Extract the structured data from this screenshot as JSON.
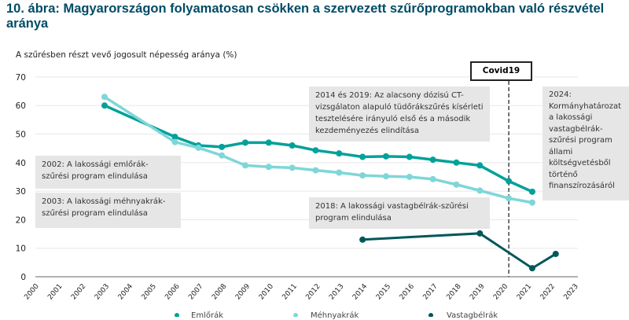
{
  "title": "10. ábra: Magyarországon folyamatosan csökken a szervezett szűrőprogramokban való részvétel aránya",
  "chart_data": {
    "type": "line",
    "title": "10. ábra: Magyarországon folyamatosan csökken a szervezett szűrőprogramokban való részvétel aránya",
    "ylabel": "A szűrésben részt vevő jogosult népesség aránya (%)",
    "xlabel": "",
    "xlim": [
      2000,
      2023
    ],
    "ylim": [
      0,
      70
    ],
    "yticks": [
      0,
      10,
      20,
      30,
      40,
      50,
      60,
      70
    ],
    "xticks": [
      "2000",
      "2001",
      "2002",
      "2003",
      "2004",
      "2005",
      "2006",
      "2007",
      "2008",
      "2009",
      "2010",
      "2011",
      "2012",
      "2013",
      "2014",
      "2015",
      "2016",
      "2017",
      "2018",
      "2019",
      "2020",
      "2021",
      "2022",
      "2023"
    ],
    "grid": "horizontal",
    "legend_placement": "bottom",
    "series": [
      {
        "name": "Emlőrák",
        "color": "#00a19a",
        "points": [
          [
            2003,
            60
          ],
          [
            2006,
            49
          ],
          [
            2007,
            46
          ],
          [
            2008,
            45.5
          ],
          [
            2009,
            47
          ],
          [
            2010,
            47
          ],
          [
            2011,
            46
          ],
          [
            2012,
            44.3
          ],
          [
            2013,
            43.2
          ],
          [
            2014,
            42
          ],
          [
            2015,
            42.2
          ],
          [
            2016,
            42
          ],
          [
            2017,
            41
          ],
          [
            2018,
            40
          ],
          [
            2019,
            39
          ],
          [
            2020,
            33.5
          ],
          [
            2021,
            29.8
          ]
        ]
      },
      {
        "name": "Méhnyakrák",
        "color": "#7fd6d8",
        "points": [
          [
            2003,
            63
          ],
          [
            2006,
            47.2
          ],
          [
            2007,
            45.2
          ],
          [
            2008,
            42.5
          ],
          [
            2009,
            39
          ],
          [
            2010,
            38.5
          ],
          [
            2011,
            38.2
          ],
          [
            2012,
            37.3
          ],
          [
            2013,
            36.5
          ],
          [
            2014,
            35.5
          ],
          [
            2015,
            35.2
          ],
          [
            2016,
            35
          ],
          [
            2017,
            34.2
          ],
          [
            2018,
            32.3
          ],
          [
            2019,
            30.2
          ],
          [
            2020,
            27.5
          ],
          [
            2021,
            26
          ]
        ]
      },
      {
        "name": "Vastagbélrák",
        "color": "#00585a",
        "points": [
          [
            2014,
            13
          ],
          [
            2019,
            15.2
          ],
          [
            2021,
            3
          ],
          [
            2022,
            8
          ]
        ]
      }
    ],
    "marker_line": {
      "x": 2020,
      "label": "Covid19"
    },
    "annotations": [
      "2002: A lakossági emlőrák-szűrési program elindulása",
      "2003: A lakossági méhnyakrák-szűrési program elindulása",
      "2014 és 2019: Az alacsony dózisú CT-vizsgálaton alapuló tüdőrákszűrés kísérleti tesztelésére irányuló első és a második kezdeményezés elindítása",
      "2018: A lakossági vastagbélrák-szűrési program elindulása",
      "2024: Kormányhatározat a lakossági vastagbélrák-szűrési program állami költségvetésből történő finanszírozásáról"
    ]
  }
}
